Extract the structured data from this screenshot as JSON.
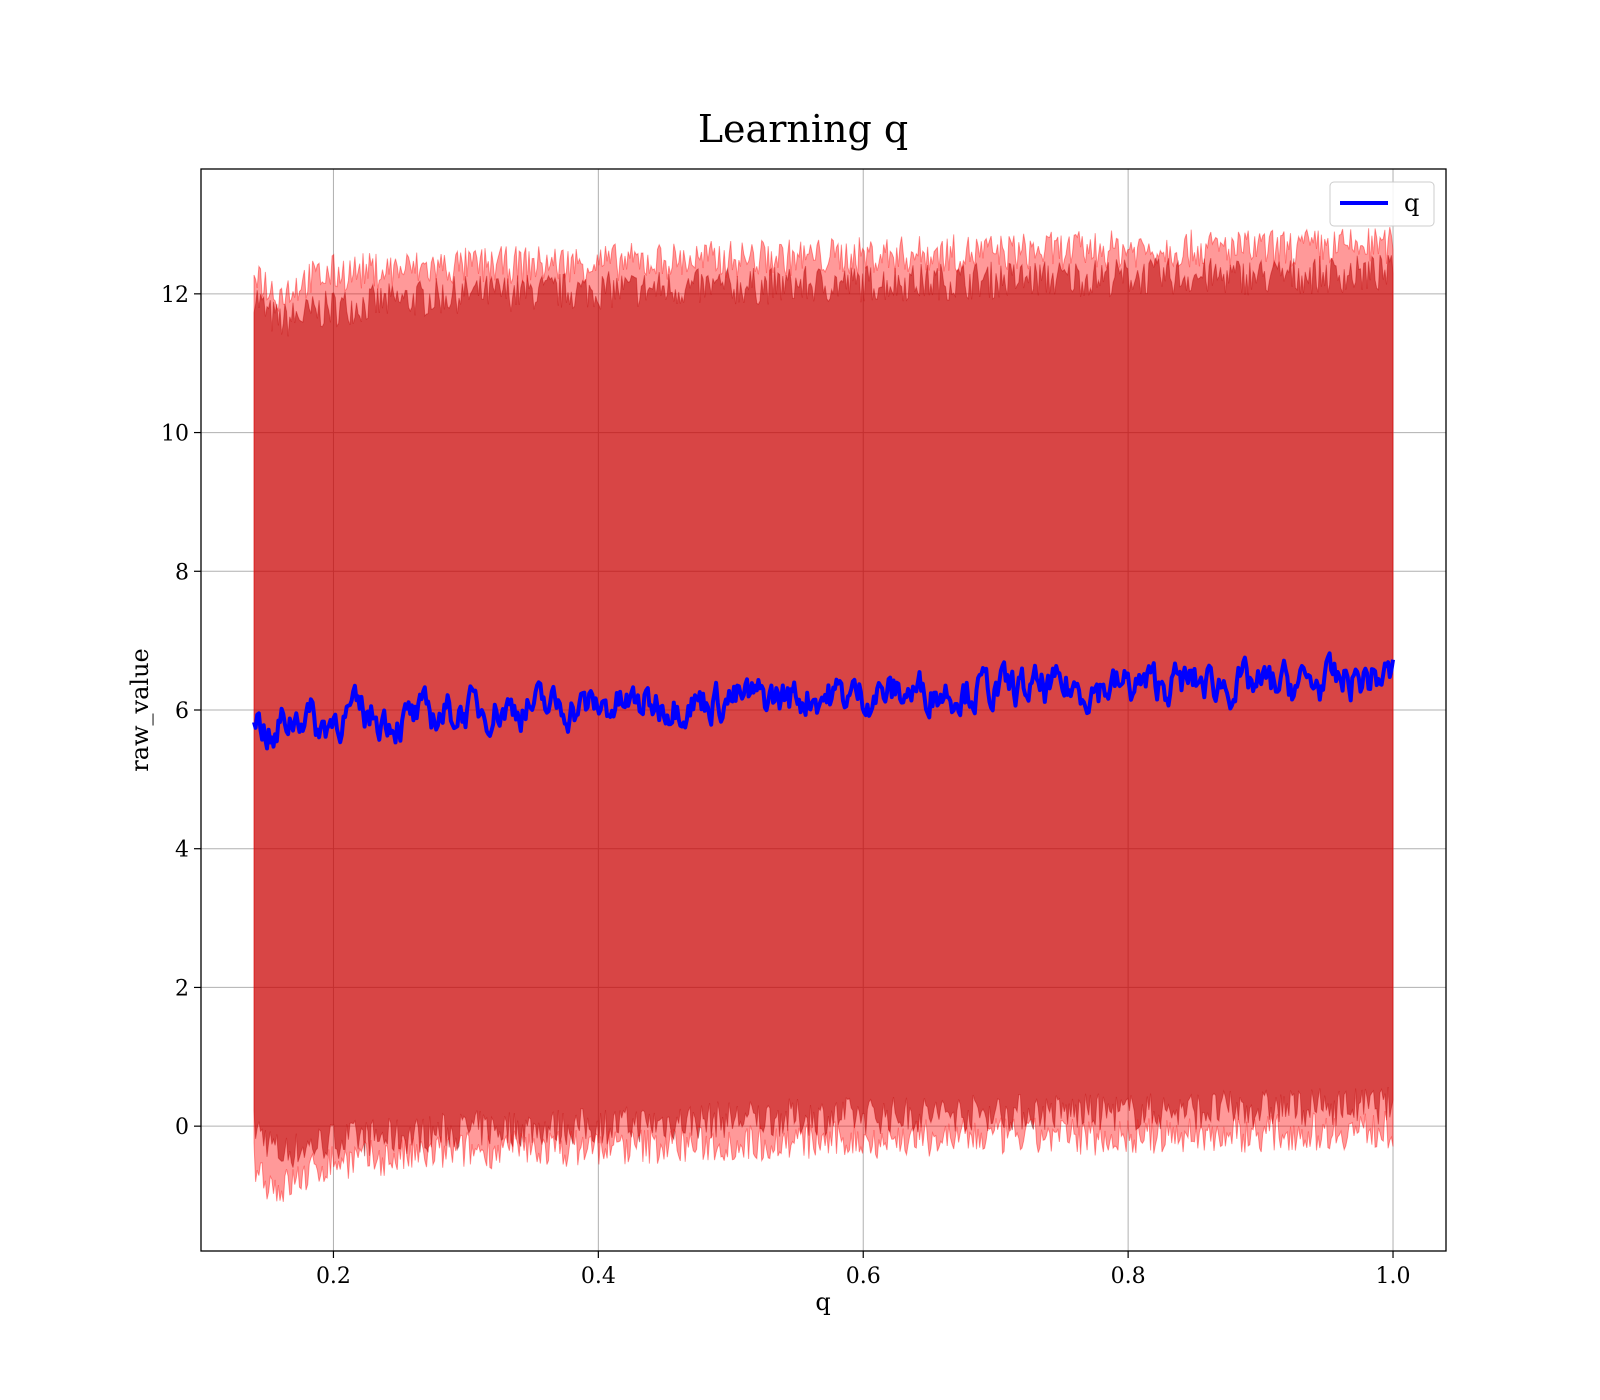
{
  "chart_data": {
    "type": "line",
    "title": "Learning q",
    "xlabel": "q",
    "ylabel": "raw_value",
    "xlim": [
      0.1,
      1.04
    ],
    "ylim": [
      -1.8,
      13.8
    ],
    "x_ticks": [
      0.2,
      0.4,
      0.6,
      0.8,
      1.0
    ],
    "x_tick_labels": [
      "0.2",
      "0.4",
      "0.6",
      "0.8",
      "1.0"
    ],
    "y_ticks": [
      0,
      2,
      4,
      6,
      8,
      10,
      12
    ],
    "y_tick_labels": [
      "0",
      "2",
      "4",
      "6",
      "8",
      "10",
      "12"
    ],
    "grid": true,
    "legend": {
      "placement": "top-right",
      "entries": [
        "q"
      ]
    },
    "series": [
      {
        "name": "q",
        "color": "#0000ff",
        "x": [
          0.14,
          0.145,
          0.15,
          0.155,
          0.16,
          0.17,
          0.18,
          0.19,
          0.2,
          0.22,
          0.25,
          0.3,
          0.35,
          0.4,
          0.45,
          0.5,
          0.55,
          0.6,
          0.65,
          0.7,
          0.75,
          0.8,
          0.85,
          0.9,
          0.95,
          1.0
        ],
        "values": [
          6.0,
          5.8,
          5.7,
          5.45,
          5.8,
          5.9,
          6.0,
          5.7,
          5.9,
          5.95,
          5.85,
          6.0,
          6.05,
          6.05,
          6.1,
          6.15,
          6.2,
          6.22,
          6.28,
          6.3,
          6.3,
          6.35,
          6.4,
          6.35,
          6.4,
          6.5
        ]
      }
    ],
    "bands": [
      {
        "color": "#8b0000",
        "x": [
          0.14,
          0.15,
          0.16,
          0.18,
          0.2,
          0.25,
          0.3,
          0.4,
          0.5,
          0.6,
          0.7,
          0.8,
          0.9,
          1.0
        ],
        "lower": [
          0.0,
          -0.2,
          -0.4,
          -0.3,
          -0.2,
          -0.15,
          -0.05,
          0.0,
          0.1,
          0.15,
          0.2,
          0.2,
          0.25,
          0.3
        ],
        "upper": [
          12.0,
          11.7,
          11.6,
          11.7,
          11.8,
          11.9,
          12.0,
          12.05,
          12.1,
          12.15,
          12.2,
          12.25,
          12.25,
          12.3
        ]
      },
      {
        "color": "#ff0000",
        "x": [
          0.14,
          0.15,
          0.16,
          0.18,
          0.2,
          0.25,
          0.3,
          0.4,
          0.5,
          0.6,
          0.7,
          0.8,
          0.9,
          1.0
        ],
        "lower": [
          -0.5,
          -0.8,
          -0.9,
          -0.7,
          -0.5,
          -0.45,
          -0.35,
          -0.3,
          -0.25,
          -0.2,
          -0.15,
          -0.15,
          -0.1,
          -0.05
        ],
        "upper": [
          12.4,
          12.1,
          12.0,
          12.2,
          12.3,
          12.35,
          12.4,
          12.45,
          12.5,
          12.55,
          12.6,
          12.65,
          12.65,
          12.7
        ]
      }
    ]
  }
}
